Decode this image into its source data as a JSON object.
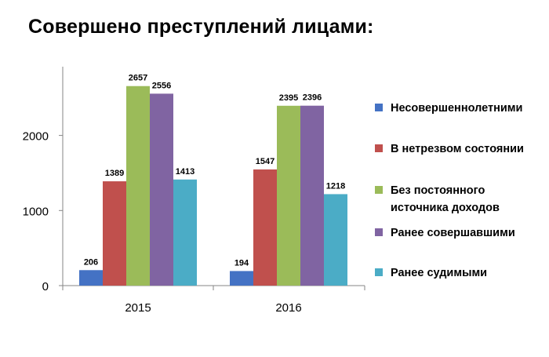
{
  "chart_data": {
    "type": "bar",
    "title": "Совершено преступлений лицами:",
    "categories": [
      "2015",
      "2016"
    ],
    "series": [
      {
        "name": "Несовершеннолетними",
        "name_lines": [
          "Несовершеннолетними"
        ],
        "color": "#4472C4",
        "values": [
          206,
          194
        ]
      },
      {
        "name": "В нетрезвом состоянии",
        "name_lines": [
          "В нетрезвом состоянии"
        ],
        "color": "#C0504D",
        "values": [
          1389,
          1547
        ]
      },
      {
        "name": "Без постоянного источника доходов",
        "name_lines": [
          "Без постоянного",
          "источника доходов"
        ],
        "color": "#9BBB59",
        "values": [
          2657,
          2395
        ]
      },
      {
        "name": "Ранее совершавшими",
        "name_lines": [
          "Ранее совершавшими"
        ],
        "color": "#8064A2",
        "values": [
          2556,
          2396
        ]
      },
      {
        "name": "Ранее судимыми",
        "name_lines": [
          "Ранее судимыми"
        ],
        "color": "#4BACC6",
        "values": [
          1413,
          1218
        ]
      }
    ],
    "yticks": [
      "0",
      "1000",
      "2000"
    ],
    "ylim": [
      0,
      2850
    ],
    "grid": false,
    "legend_position": "right",
    "data_labels": true
  }
}
